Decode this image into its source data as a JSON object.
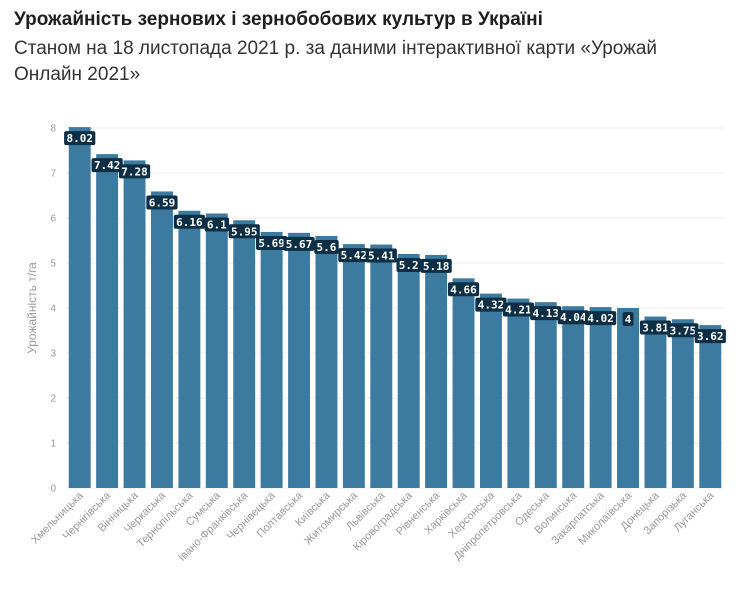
{
  "header": {
    "title": "Урожайність зернових і зернобобових культур в Україні",
    "subtitle": "Станом на 18 листопада 2021 р. за даними інтерактивної карти «Урожай Онлайн 2021»"
  },
  "colors": {
    "bar": "#3c7aa0",
    "label_bg": "#0d2f45",
    "grid": "#eeeeee",
    "axis_text": "#9a9a9a"
  },
  "chart_data": {
    "type": "bar",
    "title": "Урожайність зернових і зернобобових культур в Україні",
    "subtitle": "Станом на 18 листопада 2021 р. за даними інтерактивної карти «Урожай Онлайн 2021»",
    "xlabel": "",
    "ylabel": "Урожайність т/га",
    "ylim": [
      0,
      8
    ],
    "yticks": [
      0,
      1,
      2,
      3,
      4,
      5,
      6,
      7,
      8
    ],
    "grid": true,
    "categories": [
      "Хмельницька",
      "Чернігівська",
      "Вінницька",
      "Черкаська",
      "Тернопільська",
      "Сумська",
      "Івано-Франківська",
      "Чернівецька",
      "Полтавська",
      "Київська",
      "Житомирська",
      "Львівська",
      "Кіровоградська",
      "Рівненська",
      "Харківська",
      "Херсонська",
      "Дніпропетровська",
      "Одеська",
      "Волинська",
      "Закарпатська",
      "Миколаївська",
      "Донецька",
      "Запорізька",
      "Луганська"
    ],
    "values": [
      8.02,
      7.42,
      7.28,
      6.59,
      6.16,
      6.1,
      5.95,
      5.69,
      5.67,
      5.6,
      5.42,
      5.41,
      5.2,
      5.18,
      4.66,
      4.32,
      4.21,
      4.13,
      4.04,
      4.02,
      4,
      3.81,
      3.75,
      3.62
    ],
    "data_labels": [
      "8.02",
      "7.42",
      "7.28",
      "6.59",
      "6.16",
      "6.1",
      "5.95",
      "5.69",
      "5.67",
      "5.6",
      "5.42",
      "5.41",
      "5.2",
      "5.18",
      "4.66",
      "4.32",
      "4.21",
      "4.13",
      "4.04",
      "4.02",
      "4",
      "3.81",
      "3.75",
      "3.62"
    ]
  }
}
